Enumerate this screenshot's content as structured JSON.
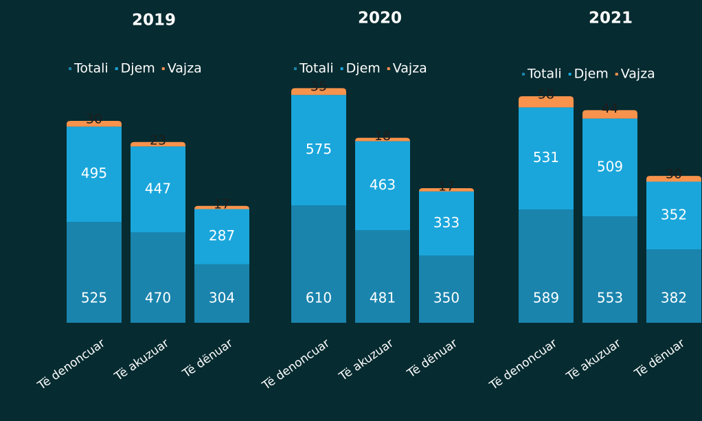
{
  "chart_data": [
    {
      "type": "bar",
      "stacked": true,
      "title": "2019",
      "categories": [
        "Të denoncuar",
        "Të akuzuar",
        "Të dënuar"
      ],
      "series": [
        {
          "name": "Totali",
          "color": "#1a84ad",
          "values": [
            525,
            470,
            304
          ]
        },
        {
          "name": "Djem",
          "color": "#1aa6db",
          "values": [
            495,
            447,
            287
          ]
        },
        {
          "name": "Vajza",
          "color": "#f7934c",
          "values": [
            30,
            23,
            17
          ]
        }
      ],
      "ylim": [
        0,
        1250
      ]
    },
    {
      "type": "bar",
      "stacked": true,
      "title": "2020",
      "categories": [
        "Të denoncuar",
        "Të akuzuar",
        "Të dënuar"
      ],
      "series": [
        {
          "name": "Totali",
          "color": "#1a84ad",
          "values": [
            610,
            481,
            350
          ]
        },
        {
          "name": "Djem",
          "color": "#1aa6db",
          "values": [
            575,
            463,
            333
          ]
        },
        {
          "name": "Vajza",
          "color": "#f7934c",
          "values": [
            35,
            18,
            17
          ]
        }
      ],
      "ylim": [
        0,
        1250
      ]
    },
    {
      "type": "bar",
      "stacked": true,
      "title": "2021",
      "categories": [
        "Të denoncuar",
        "Të akuzuar",
        "Të dënuar"
      ],
      "series": [
        {
          "name": "Totali",
          "color": "#1a84ad",
          "values": [
            589,
            553,
            382
          ]
        },
        {
          "name": "Djem",
          "color": "#1aa6db",
          "values": [
            531,
            509,
            352
          ]
        },
        {
          "name": "Vajza",
          "color": "#f7934c",
          "values": [
            58,
            44,
            30
          ]
        }
      ],
      "ylim": [
        0,
        1250
      ]
    }
  ]
}
